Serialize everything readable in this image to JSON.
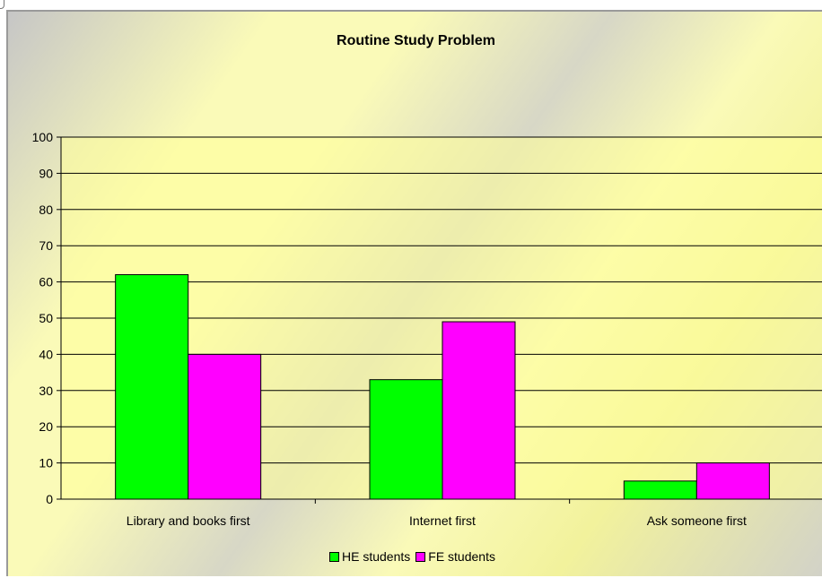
{
  "chart_data": {
    "type": "bar",
    "title": "Routine Study Problem",
    "xlabel": "",
    "ylabel": "",
    "categories": [
      "Library and books first",
      "Internet first",
      "Ask someone first"
    ],
    "series": [
      {
        "name": "HE students",
        "values": [
          62,
          33,
          5
        ],
        "color": "#00ff00"
      },
      {
        "name": "FE students",
        "values": [
          40,
          49,
          10
        ],
        "color": "#ff00ff"
      }
    ],
    "ylim": [
      0,
      100
    ],
    "yticks": [
      "0",
      "10",
      "20",
      "30",
      "40",
      "50",
      "60",
      "70",
      "80",
      "90",
      "100"
    ],
    "grid": true,
    "legend_position": "bottom",
    "colors": {
      "plot_background": "#ffff99",
      "gridline": "#000000"
    }
  }
}
